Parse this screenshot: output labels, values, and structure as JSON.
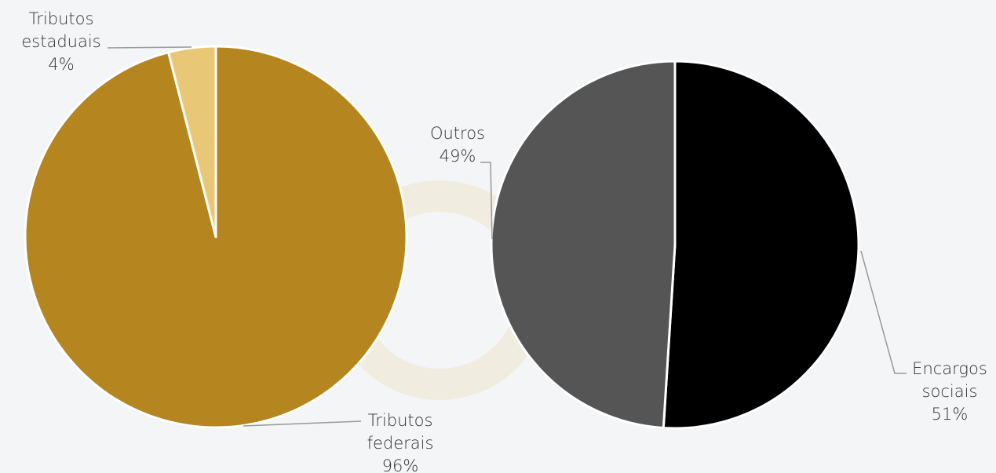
{
  "chart_data": [
    {
      "type": "pie",
      "categories": [
        "Tributos federais",
        "Tributos estaduais"
      ],
      "values": [
        96,
        4
      ],
      "value_labels": [
        "96%",
        "4%"
      ],
      "colors": [
        "#b5851f",
        "#e8c777"
      ]
    },
    {
      "type": "pie",
      "categories": [
        "Encargos sociais",
        "Outros"
      ],
      "values": [
        51,
        49
      ],
      "value_labels": [
        "51%",
        "49%"
      ],
      "colors": [
        "#000000",
        "#555555"
      ]
    }
  ]
}
